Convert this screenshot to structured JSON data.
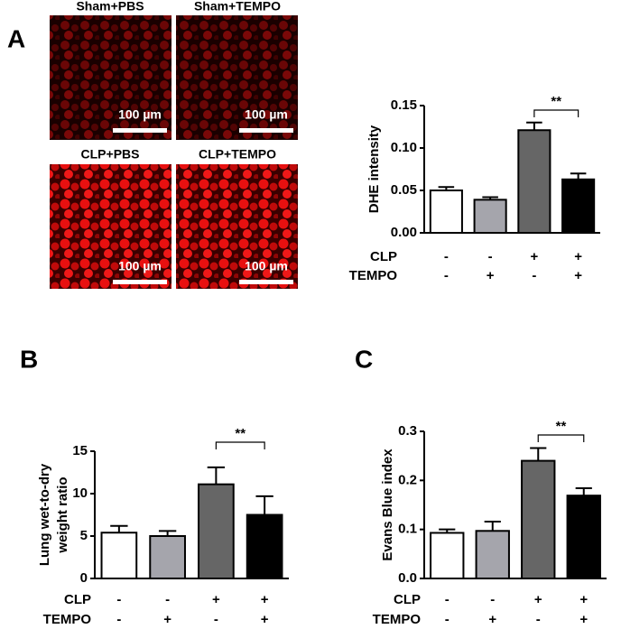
{
  "panel_labels": [
    "A",
    "B",
    "C"
  ],
  "micrographs": {
    "labels": [
      "Sham+PBS",
      "Sham+TEMPO",
      "CLP+PBS",
      "CLP+TEMPO"
    ],
    "scale_bar": "100 µm"
  },
  "chart_data": [
    {
      "type": "bar",
      "ylabel": [
        "DHE intensity"
      ],
      "factors": [
        {
          "name": "CLP",
          "levels": [
            "-",
            "-",
            "+",
            "+"
          ]
        },
        {
          "name": "TEMPO",
          "levels": [
            "-",
            "+",
            "-",
            "+"
          ]
        }
      ],
      "values": [
        0.05,
        0.039,
        0.121,
        0.063
      ],
      "errors": [
        0.004,
        0.003,
        0.009,
        0.007
      ],
      "colors": [
        "#ffffff",
        "#a5a5ac",
        "#666666",
        "#000000"
      ],
      "ylim": [
        0,
        0.15
      ],
      "yticks": [
        {
          "value": 0,
          "label": "0.00"
        },
        0.05,
        {
          "value": 0.1,
          "label": "0.10"
        },
        0.15
      ],
      "annotation": "**"
    },
    {
      "type": "bar",
      "ylabel": [
        "Lung wet-to-dry",
        "weight ratio"
      ],
      "factors": [
        {
          "name": "CLP",
          "levels": [
            "-",
            "-",
            "+",
            "+"
          ]
        },
        {
          "name": "TEMPO",
          "levels": [
            "-",
            "+",
            "-",
            "+"
          ]
        }
      ],
      "values": [
        5.4,
        5.0,
        11.1,
        7.5
      ],
      "errors": [
        0.8,
        0.6,
        2.0,
        2.2
      ],
      "colors": [
        "#ffffff",
        "#a5a5ac",
        "#666666",
        "#000000"
      ],
      "ylim": [
        0,
        15
      ],
      "yticks": [
        0,
        5,
        10,
        15
      ],
      "annotation": "**"
    },
    {
      "type": "bar",
      "ylabel": [
        "Evans Blue index"
      ],
      "factors": [
        {
          "name": "CLP",
          "levels": [
            "-",
            "-",
            "+",
            "+"
          ]
        },
        {
          "name": "TEMPO",
          "levels": [
            "-",
            "+",
            "-",
            "+"
          ]
        }
      ],
      "values": [
        0.093,
        0.097,
        0.24,
        0.169
      ],
      "errors": [
        0.007,
        0.019,
        0.026,
        0.015
      ],
      "colors": [
        "#ffffff",
        "#a5a5ac",
        "#666666",
        "#000000"
      ],
      "ylim": [
        0,
        0.3
      ],
      "yticks": [
        {
          "value": 0,
          "label": "0.0"
        },
        0.1,
        0.2,
        0.3
      ],
      "annotation": "**"
    }
  ]
}
